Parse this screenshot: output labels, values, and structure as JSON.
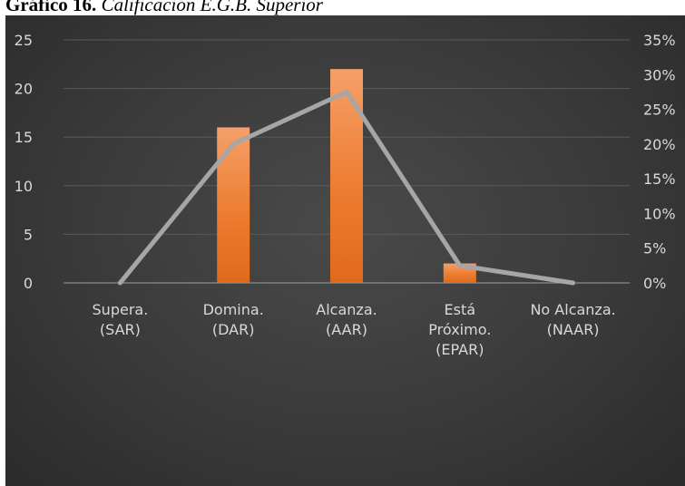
{
  "caption": {
    "label": "Gráfico 16.",
    "title": "Calificación E.G.B. Superior"
  },
  "colors": {
    "background": "#3a3a3a",
    "bar": "#ed7d31",
    "line": "#a6a6a6",
    "text": "#d9d9d9",
    "grid": "#5a5a5a"
  },
  "chart_data": {
    "type": "bar",
    "categories": [
      [
        "Supera.",
        "(SAR)"
      ],
      [
        "Domina.",
        "(DAR)"
      ],
      [
        "Alcanza.",
        "(AAR)"
      ],
      [
        "Está",
        "Próximo.",
        "(EPAR)"
      ],
      [
        "No Alcanza.",
        "(NAAR)"
      ]
    ],
    "series": [
      {
        "type": "bar",
        "axis": "left",
        "values": [
          0,
          16,
          22,
          2,
          0
        ]
      },
      {
        "type": "line",
        "axis": "right",
        "values": [
          0,
          0.2,
          0.275,
          0.025,
          0
        ]
      }
    ],
    "y_left": {
      "min": 0,
      "max": 25,
      "step": 5,
      "ticks": [
        "0",
        "5",
        "10",
        "15",
        "20",
        "25"
      ]
    },
    "y_right": {
      "min": 0,
      "max": 0.35,
      "step": 0.05,
      "ticks": [
        "0%",
        "5%",
        "10%",
        "15%",
        "20%",
        "25%",
        "30%",
        "35%"
      ]
    },
    "grid": true,
    "legend": "none"
  }
}
